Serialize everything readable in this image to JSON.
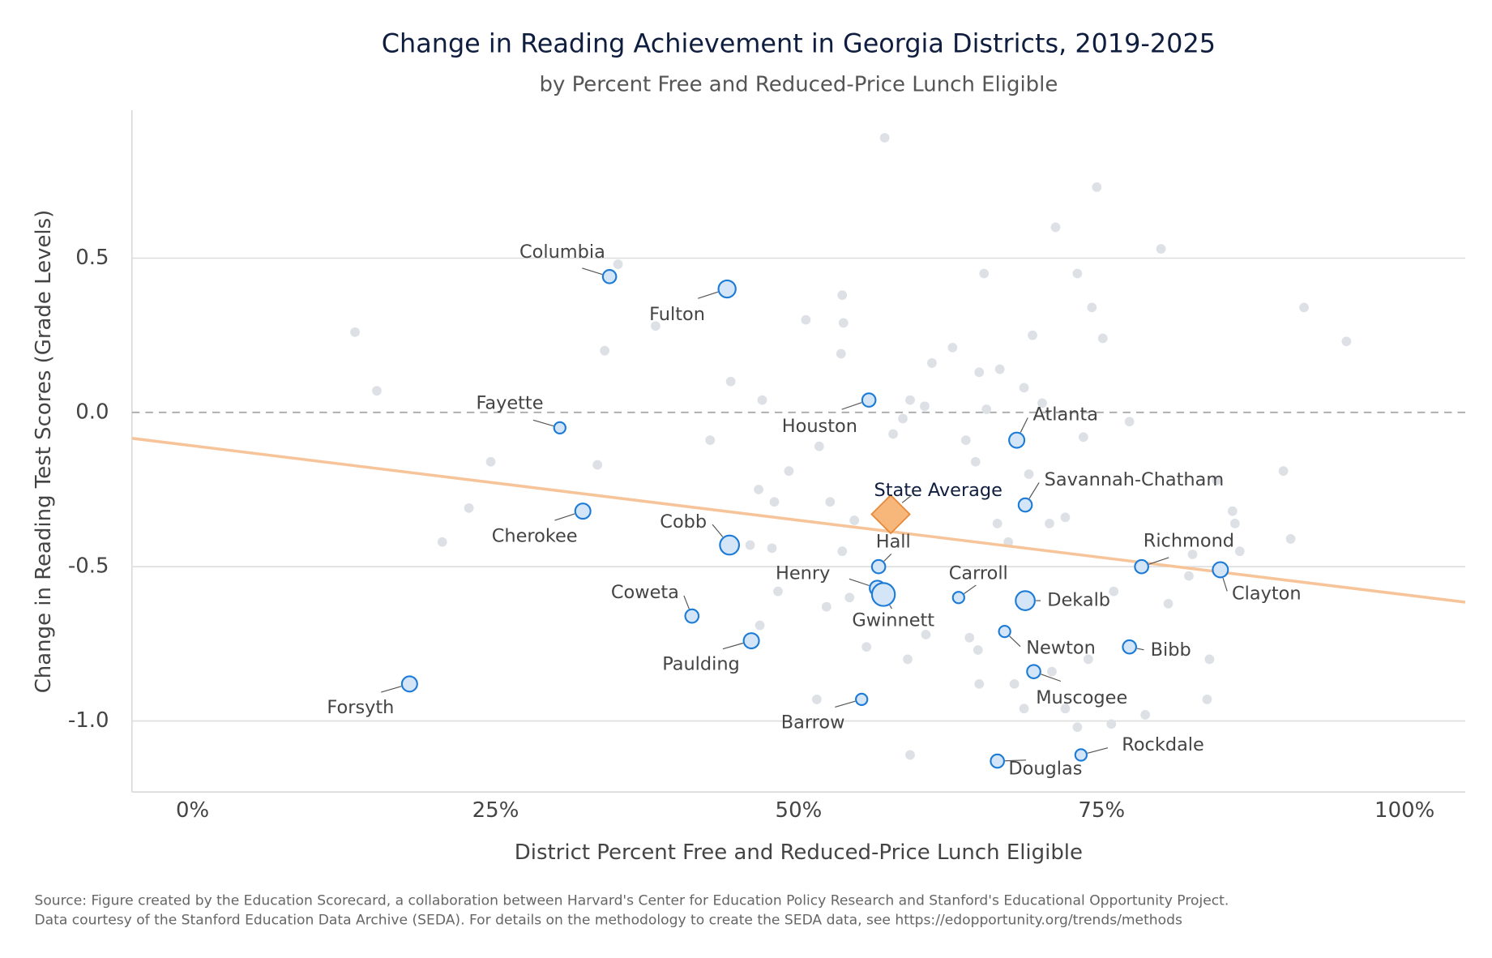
{
  "chart_data": {
    "type": "scatter",
    "title": "Change in Reading Achievement in Georgia Districts, 2019-2025",
    "subtitle": "by Percent Free and Reduced-Price Lunch Eligible",
    "x_label": "District Percent Free and Reduced-Price Lunch Eligible",
    "y_label": "Change in Reading Test Scores (Grade Levels)",
    "source": [
      "Source: Figure created by the Education Scorecard, a collaboration between Harvard's Center for Education Policy Research and Stanford's Educational Opportunity Project.",
      "Data courtesy of the Stanford Education Data Archive (SEDA). For details on the methodology to create the SEDA data, see https://edopportunity.org/trends/methods"
    ],
    "xlim": [
      -5,
      105
    ],
    "ylim": [
      -1.23,
      0.98
    ],
    "xticks": [
      {
        "value": 0,
        "label": "0%"
      },
      {
        "value": 25,
        "label": "25%"
      },
      {
        "value": 50,
        "label": "50%"
      },
      {
        "value": 75,
        "label": "75%"
      },
      {
        "value": 100,
        "label": "100%"
      }
    ],
    "yticks": [
      0.5,
      {
        "value": 0,
        "label": "0.0"
      },
      -0.5,
      {
        "value": -1,
        "label": "-1.0"
      }
    ],
    "grid": true,
    "series": [
      {
        "color": "#dde1e6",
        "x": [
          57.1,
          74.6,
          71.2,
          79.9,
          35.1,
          65.3,
          73.0,
          53.6,
          74.2,
          91.7,
          50.6,
          53.7,
          38.2,
          13.4,
          69.3,
          75.1,
          95.2,
          62.7,
          34.0,
          53.5,
          61.0,
          66.6,
          64.9,
          44.4,
          68.6,
          15.2,
          47.0,
          70.1,
          59.2,
          60.4,
          65.5,
          58.6,
          57.8,
          63.8,
          77.3,
          42.7,
          51.7,
          73.5,
          64.6,
          33.4,
          24.6,
          49.2,
          69.0,
          84.5,
          90.0,
          46.7,
          48.0,
          52.6,
          22.8,
          85.8,
          72.0,
          70.7,
          66.4,
          86.0,
          54.6,
          20.6,
          90.6,
          67.3,
          46.0,
          47.8,
          53.6,
          86.4,
          82.5,
          82.2,
          48.3,
          54.2,
          76.0,
          80.5,
          52.3,
          60.5,
          64.1,
          46.8,
          64.8,
          55.6,
          73.9,
          59.0,
          83.9,
          64.9,
          67.8,
          70.9,
          83.7,
          51.5,
          72.0,
          68.6,
          78.6,
          73.0,
          75.8,
          59.2
        ],
        "values": [
          0.89,
          0.73,
          0.6,
          0.53,
          0.48,
          0.45,
          0.45,
          0.38,
          0.34,
          0.34,
          0.3,
          0.29,
          0.28,
          0.26,
          0.25,
          0.24,
          0.23,
          0.21,
          0.2,
          0.19,
          0.16,
          0.14,
          0.13,
          0.1,
          0.08,
          0.07,
          0.04,
          0.03,
          0.04,
          0.02,
          0.01,
          -0.02,
          -0.07,
          -0.09,
          -0.03,
          -0.09,
          -0.11,
          -0.08,
          -0.16,
          -0.17,
          -0.16,
          -0.19,
          -0.2,
          -0.22,
          -0.19,
          -0.25,
          -0.29,
          -0.29,
          -0.31,
          -0.32,
          -0.34,
          -0.36,
          -0.36,
          -0.36,
          -0.35,
          -0.42,
          -0.41,
          -0.42,
          -0.43,
          -0.44,
          -0.45,
          -0.45,
          -0.46,
          -0.53,
          -0.58,
          -0.6,
          -0.58,
          -0.62,
          -0.63,
          -0.72,
          -0.73,
          -0.69,
          -0.77,
          -0.76,
          -0.8,
          -0.8,
          -0.8,
          -0.88,
          -0.88,
          -0.84,
          -0.93,
          -0.93,
          -0.96,
          -0.96,
          -0.98,
          -1.02,
          -1.01,
          -1.11
        ]
      },
      {
        "color": "#1b7bd6",
        "labels": [
          "Columbia",
          "Fulton",
          "Fayette",
          "Houston",
          "Atlanta",
          "Savannah-Chatham",
          "Cherokee",
          "Cobb",
          "Hall",
          "Richmond",
          "Clayton",
          "Henry",
          "Gwinnett",
          "Carroll",
          "Dekalb",
          "Coweta",
          "Paulding",
          "Newton",
          "Bibb",
          "Muscogee",
          "Forsyth",
          "Barrow",
          "Rockdale",
          "Douglas"
        ],
        "x": [
          34.4,
          44.1,
          30.3,
          55.8,
          68.0,
          68.7,
          32.2,
          44.3,
          56.6,
          78.3,
          84.8,
          56.5,
          57.0,
          63.2,
          68.7,
          41.2,
          46.1,
          67.0,
          77.3,
          69.4,
          17.9,
          55.2,
          73.3,
          66.4
        ],
        "values": [
          0.44,
          0.4,
          -0.05,
          0.04,
          -0.09,
          -0.3,
          -0.32,
          -0.43,
          -0.5,
          -0.5,
          -0.51,
          -0.57,
          -0.59,
          -0.6,
          -0.61,
          -0.66,
          -0.74,
          -0.71,
          -0.76,
          -0.84,
          -0.88,
          -0.93,
          -1.11,
          -1.13
        ],
        "sizes": [
          7,
          9,
          6,
          7,
          8,
          7,
          8,
          10,
          7,
          7,
          8,
          8,
          12,
          6,
          10,
          7,
          8,
          6,
          7,
          7,
          8,
          6,
          6,
          7
        ]
      }
    ],
    "highlight": {
      "label": "State Average",
      "x": 57.6,
      "y": -0.33,
      "color": "#f7b77a"
    },
    "trend_line": {
      "x": [
        -5,
        105
      ],
      "y": [
        -0.084,
        -0.615
      ],
      "color": "#f7c49a"
    }
  }
}
